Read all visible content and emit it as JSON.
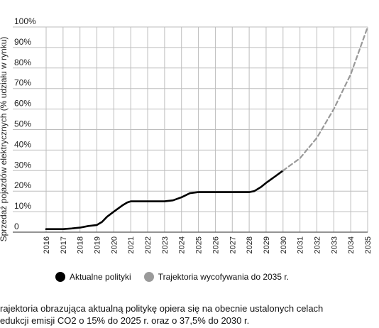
{
  "chart_data": {
    "type": "line",
    "ylabel": "Sprzedaż pojazdów elektrycznych (% udziału w rynku)",
    "x": [
      "2016",
      "2017",
      "2018",
      "2019",
      "2020",
      "2021",
      "2022",
      "2023",
      "2024",
      "2025",
      "2026",
      "2027",
      "2028",
      "2029",
      "2030",
      "2031",
      "2032",
      "2033",
      "2034",
      "2035"
    ],
    "yticks": [
      "0",
      "10%",
      "20%",
      "30%",
      "40%",
      "50%",
      "60%",
      "70%",
      "80%",
      "90%",
      "100%"
    ],
    "ylim": [
      0,
      100
    ],
    "grid": true,
    "series": [
      {
        "name": "Aktualne polityki",
        "color": "#000000",
        "style": "solid",
        "points": [
          [
            2016,
            1.5
          ],
          [
            2017,
            1.5
          ],
          [
            2017.5,
            1.8
          ],
          [
            2018,
            2.2
          ],
          [
            2018.5,
            3
          ],
          [
            2019,
            3.5
          ],
          [
            2019.3,
            5
          ],
          [
            2019.6,
            7.5
          ],
          [
            2020,
            10
          ],
          [
            2020.5,
            13
          ],
          [
            2020.8,
            14.5
          ],
          [
            2021,
            15
          ],
          [
            2022,
            15
          ],
          [
            2023,
            15
          ],
          [
            2023.5,
            15.5
          ],
          [
            2024,
            17
          ],
          [
            2024.5,
            19
          ],
          [
            2025,
            19.5
          ],
          [
            2026,
            19.5
          ],
          [
            2027,
            19.5
          ],
          [
            2028,
            19.5
          ],
          [
            2028.3,
            20
          ],
          [
            2028.7,
            22
          ],
          [
            2029,
            24
          ],
          [
            2029.5,
            27
          ],
          [
            2030,
            30
          ]
        ]
      },
      {
        "name": "Trajektoria wycofywania do 2035 r.",
        "color": "#999999",
        "style": "dashed",
        "points": [
          [
            2030,
            30
          ],
          [
            2031,
            36
          ],
          [
            2032,
            46
          ],
          [
            2033,
            60
          ],
          [
            2034,
            77
          ],
          [
            2035,
            100
          ]
        ]
      }
    ],
    "legend": {
      "placement": "bottom",
      "items": [
        {
          "label": "Aktualne polityki",
          "color": "#000000"
        },
        {
          "label": "Trajektoria wycofywania do 2035 r.",
          "color": "#9a9a9a"
        }
      ]
    }
  },
  "caption": {
    "line1": "rajektoria obrazująca aktualną politykę opiera się na obecnie ustalonych celach",
    "line2": "edukcji emisji CO2 o 15% do 2025 r. oraz o 37,5% do 2030 r."
  }
}
